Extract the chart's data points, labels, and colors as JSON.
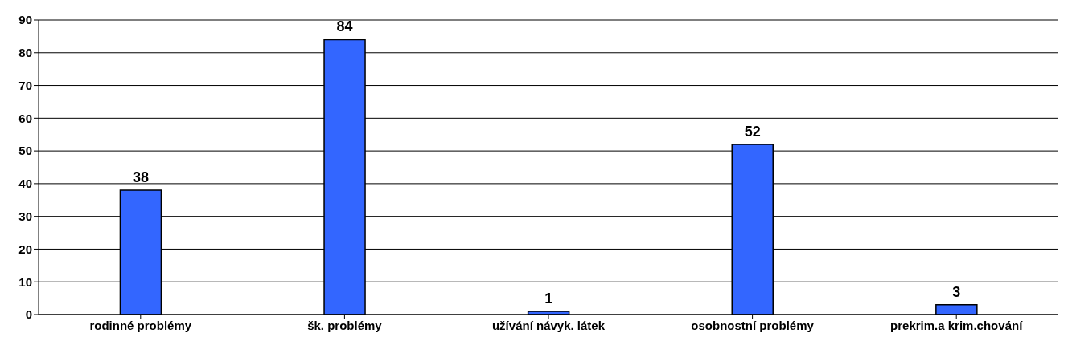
{
  "chart_data": {
    "type": "bar",
    "categories": [
      "rodinné problémy",
      "šk. problémy",
      "užívání návyk. látek",
      "osobnostní problémy",
      "prekrim.a krim.chování"
    ],
    "values": [
      38,
      84,
      1,
      52,
      3
    ],
    "color": "#3366ff",
    "ylim": [
      0,
      90
    ],
    "yticks": [
      0,
      10,
      20,
      30,
      40,
      50,
      60,
      70,
      80,
      90
    ],
    "grid": "y",
    "data_labels": true
  }
}
